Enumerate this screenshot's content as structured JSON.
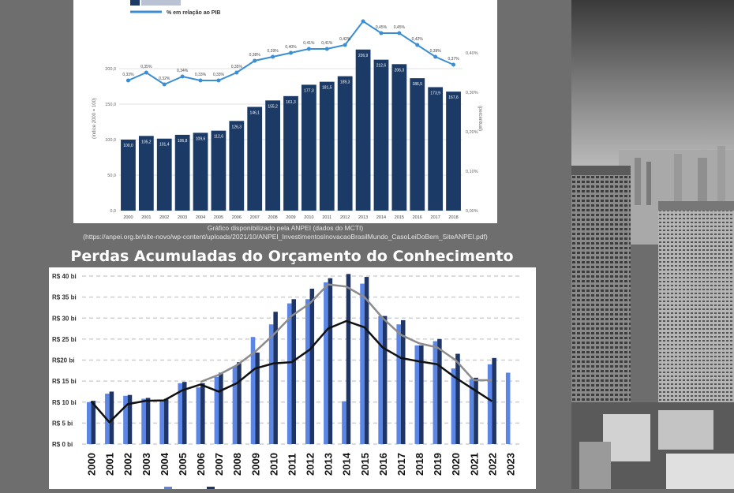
{
  "chart_top": {
    "type": "bar",
    "ylabel": "(índice 2000 = 100)",
    "y2label": "(percentual)",
    "ylim": [
      0,
      250
    ],
    "y2lim": [
      0,
      0.45
    ],
    "yticks": [
      "0,0",
      "50,0",
      "100,0",
      "150,0",
      "200,0"
    ],
    "y2ticks": [
      "0,00%",
      "0,10%",
      "0,20%",
      "0,30%",
      "0,40%"
    ],
    "categories": [
      "2000",
      "2001",
      "2002",
      "2003",
      "2004",
      "2005",
      "2006",
      "2007",
      "2008",
      "2009",
      "2010",
      "2011",
      "2012",
      "2013",
      "2014",
      "2015",
      "2016",
      "2017",
      "2018"
    ],
    "bar_values": [
      100.0,
      105.2,
      101.4,
      106.8,
      109.6,
      112.6,
      126.3,
      146.1,
      155.2,
      161.3,
      177.3,
      181.5,
      189.3,
      226.9,
      212.6,
      206.3,
      186.5,
      173.9,
      167.6
    ],
    "bar_labels": [
      "100,0",
      "105,2",
      "101,4",
      "106,8",
      "109,6",
      "112,6",
      "126,3",
      "146,1",
      "155,2",
      "161,3",
      "177,3",
      "181,5",
      "189,3",
      "226,9",
      "212,6",
      "206,3",
      "186,5",
      "173,9",
      "167,6"
    ],
    "line_values": [
      0.33,
      0.35,
      0.32,
      0.34,
      0.33,
      0.33,
      0.35,
      0.38,
      0.39,
      0.4,
      0.41,
      0.41,
      0.42,
      0.48,
      0.45,
      0.45,
      0.42,
      0.39,
      0.37
    ],
    "line_labels": [
      "0,33%",
      "0,35%",
      "0,32%",
      "0,34%",
      "0,33%",
      "0,33%",
      "0,35%",
      "0,38%",
      "0,39%",
      "0,40%",
      "0,41%",
      "0,41%",
      "0,42%",
      "",
      "0,45%",
      "0,45%",
      "0,42%",
      "0,39%",
      "0,37%"
    ],
    "legend_line": "% em relação ao PIB",
    "colors": {
      "bar": "#1b3a66",
      "line": "#3b8ed2"
    }
  },
  "caption": {
    "line1": "Gráfico disponibilizado pela ANPEI (dados do MCTI)",
    "line2": "(https://anpei.org.br/site-novo/wp-content/uploads/2021/10/ANPEI_InvestimentosInovacaoBrasilMundo_CasoLeiDoBem_SiteANPEI.pdf)"
  },
  "chart_data": {
    "type": "bar",
    "title": "Perdas Acumuladas do Orçamento do Conhecimento",
    "ylim": [
      0,
      40
    ],
    "yticks": [
      "R$ 0 bi",
      "R$ 5 bi",
      "R$ 10 bi",
      "R$ 15 bi",
      "R$20 bi",
      "R$ 25 bi",
      "R$ 30 bi",
      "R$ 35 bi",
      "R$ 40 bi"
    ],
    "categories": [
      "2000",
      "2001",
      "2002",
      "2003",
      "2004",
      "2005",
      "2006",
      "2007",
      "2008",
      "2009",
      "2010",
      "2011",
      "2012",
      "2013",
      "2014",
      "2015",
      "2016",
      "2017",
      "2018",
      "2019",
      "2020",
      "2021",
      "2022",
      "2023"
    ],
    "series": [
      {
        "kind": "bar",
        "color": "#5b86e5",
        "values": [
          10,
          12,
          11.5,
          10.8,
          10.5,
          14.5,
          13.5,
          16,
          18.5,
          25.5,
          28.5,
          33.5,
          34.5,
          38.5,
          10.2,
          38.2,
          30.5,
          28.5,
          23.5,
          24.5,
          18,
          15.5,
          19,
          17
        ]
      },
      {
        "kind": "bar",
        "color": "#1f3566",
        "values": [
          10.3,
          12.5,
          11.7,
          11,
          10.8,
          14.8,
          14.5,
          17,
          19.5,
          21.8,
          31.5,
          34.5,
          37,
          39.5,
          40.5,
          39.8,
          30.5,
          29.5,
          23.5,
          25,
          21.5,
          15.8,
          20.5,
          null
        ]
      },
      {
        "kind": "line",
        "color": "#111111",
        "values": [
          10.2,
          5.2,
          9.5,
          10.3,
          10.4,
          12.8,
          14.2,
          12.5,
          14.5,
          18,
          19.2,
          19.5,
          22.5,
          27.5,
          29.3,
          27.8,
          23,
          20.5,
          19.7,
          19,
          15.8,
          13,
          10.2,
          null
        ]
      },
      {
        "kind": "line",
        "color": "#8c8c8c",
        "values": [
          null,
          null,
          null,
          null,
          null,
          null,
          14.8,
          16.5,
          18.8,
          22,
          26,
          30.5,
          33.5,
          38,
          37.5,
          35,
          30,
          26,
          24,
          23,
          20,
          15.2,
          15.2,
          null
        ]
      }
    ]
  }
}
